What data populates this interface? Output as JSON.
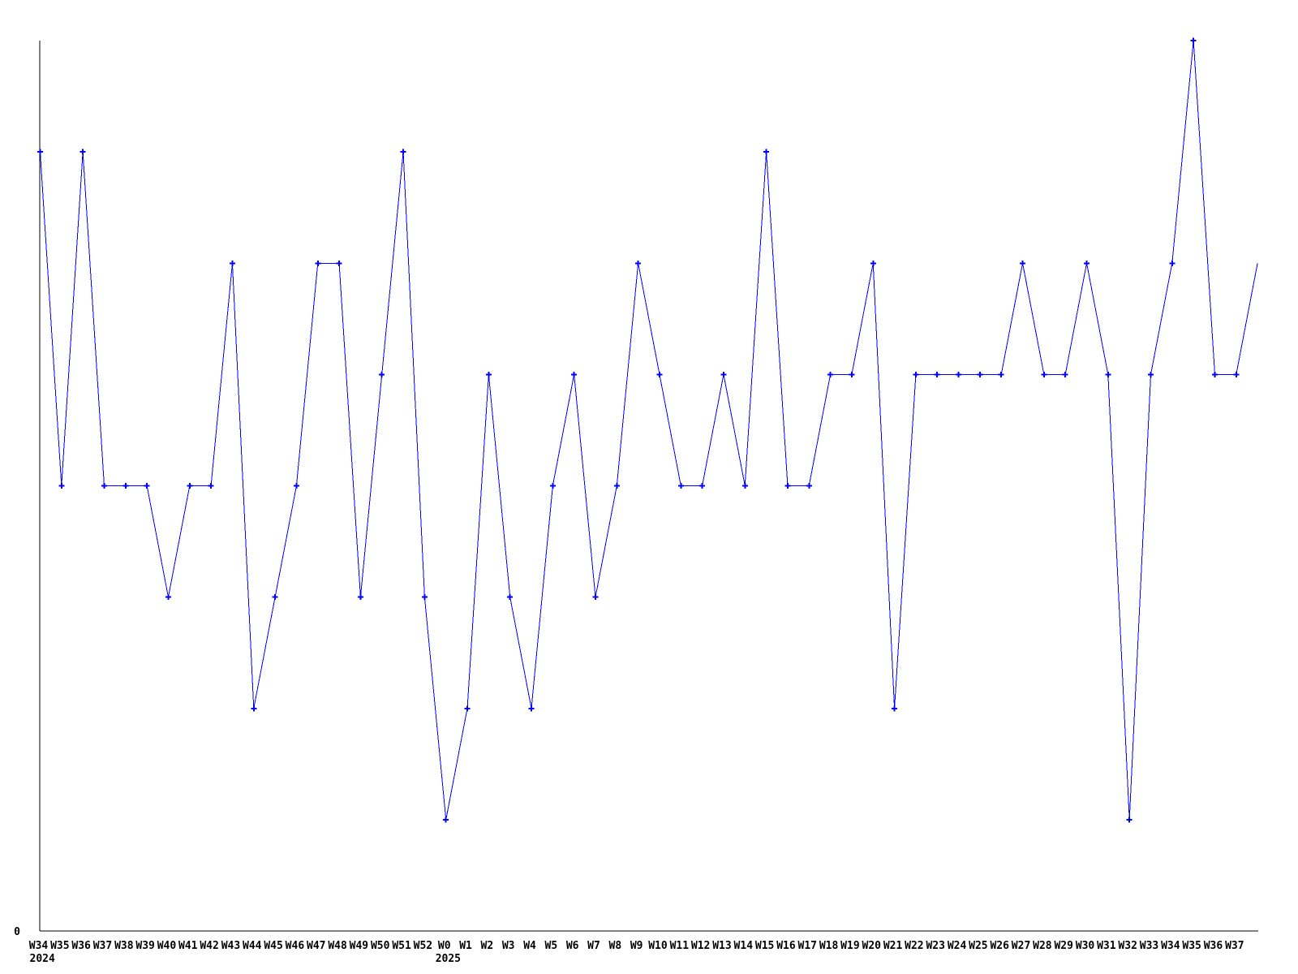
{
  "chart_data": {
    "type": "line",
    "title": "",
    "xlabel": "",
    "ylabel": "",
    "grid": false,
    "legend": null,
    "marker_style": "plus",
    "line_color": "#0000ff",
    "axis_color": "#000000",
    "background_color": "#ffffff",
    "ylim": [
      0,
      8
    ],
    "y_origin_label": "0",
    "categories": [
      "W34",
      "W35",
      "W36",
      "W37",
      "W38",
      "W39",
      "W40",
      "W41",
      "W42",
      "W43",
      "W44",
      "W45",
      "W46",
      "W47",
      "W48",
      "W49",
      "W50",
      "W51",
      "W52",
      "W0",
      "W1",
      "W2",
      "W3",
      "W4",
      "W5",
      "W6",
      "W7",
      "W8",
      "W9",
      "W10",
      "W11",
      "W12",
      "W13",
      "W14",
      "W15",
      "W16",
      "W17",
      "W18",
      "W19",
      "W20",
      "W21",
      "W22",
      "W23",
      "W24",
      "W25",
      "W26",
      "W27",
      "W28",
      "W29",
      "W30",
      "W31",
      "W32",
      "W33",
      "W34",
      "W35",
      "W36",
      "W37"
    ],
    "values": [
      7,
      4,
      7,
      4,
      4,
      4,
      3,
      4,
      4,
      6,
      2,
      3,
      4,
      6,
      6,
      3,
      5,
      7,
      3,
      1,
      2,
      5,
      3,
      2,
      4,
      5,
      3,
      4,
      6,
      5,
      4,
      4,
      5,
      4,
      7,
      4,
      4,
      5,
      5,
      6,
      2,
      5,
      5,
      5,
      5,
      5,
      6,
      5,
      5,
      6,
      5,
      1,
      5,
      6,
      8,
      5,
      5
    ],
    "year_markers": [
      {
        "label": "2024",
        "index": 0
      },
      {
        "label": "2025",
        "index": 19
      }
    ],
    "tail_segment": {
      "value": 6,
      "has_marker": false,
      "has_label": false
    }
  }
}
